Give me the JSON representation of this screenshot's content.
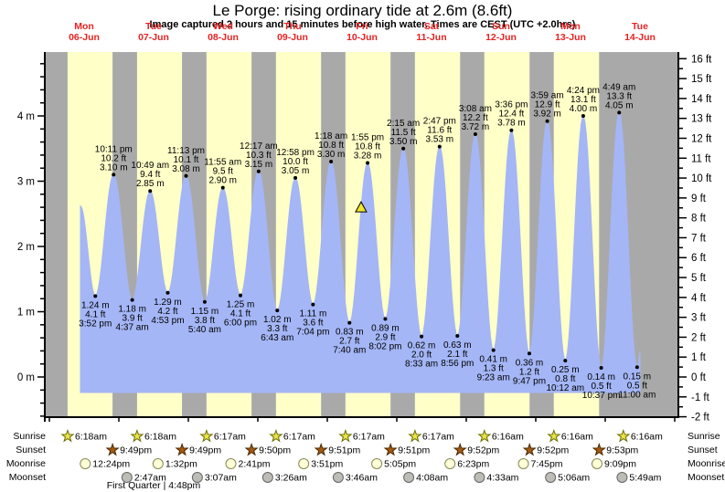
{
  "title": "Le Porge: rising  ordinary tide at 2.6m (8.6ft)",
  "subtitle": "Image captured 2 hours and 15 minutes before high water. Times are CEST (UTC +2.0hrs)",
  "row_labels": {
    "sunrise": "Sunrise",
    "sunset": "Sunset",
    "moonrise": "Moonrise",
    "moonset": "Moonset"
  },
  "moon_phase": {
    "label": "First Quarter | 4:48pm",
    "day_index": 1
  },
  "colors": {
    "night_band": "#a9a9a9",
    "day_band": "#ffffc8",
    "tide_fill": "#a4b6f6",
    "day_label_red": "#e82222",
    "axis_black": "#000000",
    "sunrise_star_fill": "#e8e44a",
    "sunrise_star_stroke": "#6b6b00",
    "sunset_star_fill": "#a55a11",
    "sunset_star_stroke": "#4a2800",
    "moonrise_fill": "#ffffd8",
    "moonrise_stroke": "#888855",
    "moonset_fill": "#bdbdb5",
    "moonset_stroke": "#666666",
    "marker_fill": "#f2e62e",
    "marker_stroke": "#000000"
  },
  "chart_data": {
    "type": "area",
    "y_axis_left": {
      "unit": "m",
      "tick_labels": [
        0,
        1,
        2,
        3,
        4
      ]
    },
    "y_axis_right": {
      "unit": "ft",
      "min": -2,
      "max": 16
    },
    "days": [
      {
        "name": "Mon",
        "date": "06-Jun"
      },
      {
        "name": "Tue",
        "date": "07-Jun"
      },
      {
        "name": "Wed",
        "date": "08-Jun"
      },
      {
        "name": "Thu",
        "date": "09-Jun"
      },
      {
        "name": "Fri",
        "date": "10-Jun"
      },
      {
        "name": "Sat",
        "date": "11-Jun"
      },
      {
        "name": "Sun",
        "date": "12-Jun"
      },
      {
        "name": "Mon",
        "date": "13-Jun"
      },
      {
        "name": "Tue",
        "date": "14-Jun"
      }
    ],
    "high_tides": [
      {
        "day": 0,
        "hour": 22.183,
        "time": "10:11 pm",
        "ft_label": "10.2 ft",
        "m": 3.1,
        "m_label": "3.10 m"
      },
      {
        "day": 1,
        "hour": 10.817,
        "time": "10:49 am",
        "ft_label": "9.4 ft",
        "m": 2.85,
        "m_label": "2.85 m"
      },
      {
        "day": 1,
        "hour": 23.217,
        "time": "11:13 pm",
        "ft_label": "10.1 ft",
        "m": 3.08,
        "m_label": "3.08 m"
      },
      {
        "day": 2,
        "hour": 11.917,
        "time": "11:55 am",
        "ft_label": "9.5 ft",
        "m": 2.9,
        "m_label": "2.90 m"
      },
      {
        "day": 3,
        "hour": 0.283,
        "time": "12:17 am",
        "ft_label": "10.3 ft",
        "m": 3.15,
        "m_label": "3.15 m"
      },
      {
        "day": 3,
        "hour": 12.967,
        "time": "12:58 pm",
        "ft_label": "10.0 ft",
        "m": 3.05,
        "m_label": "3.05 m"
      },
      {
        "day": 4,
        "hour": 1.3,
        "time": "1:18 am",
        "ft_label": "10.8 ft",
        "m": 3.3,
        "m_label": "3.30 m"
      },
      {
        "day": 4,
        "hour": 13.917,
        "time": "1:55 pm",
        "ft_label": "10.8 ft",
        "m": 3.28,
        "m_label": "3.28 m"
      },
      {
        "day": 5,
        "hour": 2.25,
        "time": "2:15 am",
        "ft_label": "11.5 ft",
        "m": 3.5,
        "m_label": "3.50 m"
      },
      {
        "day": 5,
        "hour": 14.783,
        "time": "2:47 pm",
        "ft_label": "11.6 ft",
        "m": 3.53,
        "m_label": "3.53 m"
      },
      {
        "day": 6,
        "hour": 3.133,
        "time": "3:08 am",
        "ft_label": "12.2 ft",
        "m": 3.72,
        "m_label": "3.72 m"
      },
      {
        "day": 6,
        "hour": 15.6,
        "time": "3:36 pm",
        "ft_label": "12.4 ft",
        "m": 3.78,
        "m_label": "3.78 m"
      },
      {
        "day": 7,
        "hour": 3.983,
        "time": "3:59 am",
        "ft_label": "12.9 ft",
        "m": 3.92,
        "m_label": "3.92 m"
      },
      {
        "day": 7,
        "hour": 16.4,
        "time": "4:24 pm",
        "ft_label": "13.1 ft",
        "m": 4.0,
        "m_label": "4.00 m"
      },
      {
        "day": 8,
        "hour": 4.817,
        "time": "4:49 am",
        "ft_label": "13.3 ft",
        "m": 4.05,
        "m_label": "4.05 m"
      }
    ],
    "low_tides": [
      {
        "day": 0,
        "hour": 15.867,
        "time": "3:52 pm",
        "ft_label": "4.1 ft",
        "m": 1.24,
        "m_label": "1.24 m"
      },
      {
        "day": 1,
        "hour": 4.617,
        "time": "4:37 am",
        "ft_label": "3.9 ft",
        "m": 1.18,
        "m_label": "1.18 m"
      },
      {
        "day": 1,
        "hour": 16.883,
        "time": "4:53 pm",
        "ft_label": "4.2 ft",
        "m": 1.29,
        "m_label": "1.29 m"
      },
      {
        "day": 2,
        "hour": 5.667,
        "time": "5:40 am",
        "ft_label": "3.8 ft",
        "m": 1.15,
        "m_label": "1.15 m"
      },
      {
        "day": 2,
        "hour": 18.0,
        "time": "6:00 pm",
        "ft_label": "4.1 ft",
        "m": 1.25,
        "m_label": "1.25 m"
      },
      {
        "day": 3,
        "hour": 6.717,
        "time": "6:43 am",
        "ft_label": "3.3 ft",
        "m": 1.02,
        "m_label": "1.02 m"
      },
      {
        "day": 3,
        "hour": 19.067,
        "time": "7:04 pm",
        "ft_label": "3.6 ft",
        "m": 1.11,
        "m_label": "1.11 m"
      },
      {
        "day": 4,
        "hour": 7.667,
        "time": "7:40 am",
        "ft_label": "2.7 ft",
        "m": 0.83,
        "m_label": "0.83 m"
      },
      {
        "day": 4,
        "hour": 20.033,
        "time": "8:02 pm",
        "ft_label": "2.9 ft",
        "m": 0.89,
        "m_label": "0.89 m"
      },
      {
        "day": 5,
        "hour": 8.55,
        "time": "8:33 am",
        "ft_label": "2.0 ft",
        "m": 0.62,
        "m_label": "0.62 m"
      },
      {
        "day": 5,
        "hour": 20.933,
        "time": "8:56 pm",
        "ft_label": "2.1 ft",
        "m": 0.63,
        "m_label": "0.63 m"
      },
      {
        "day": 6,
        "hour": 9.383,
        "time": "9:23 am",
        "ft_label": "1.3 ft",
        "m": 0.41,
        "m_label": "0.41 m"
      },
      {
        "day": 6,
        "hour": 21.783,
        "time": "9:47 pm",
        "ft_label": "1.2 ft",
        "m": 0.36,
        "m_label": "0.36 m"
      },
      {
        "day": 7,
        "hour": 10.2,
        "time": "10:12 am",
        "ft_label": "0.8 ft",
        "m": 0.25,
        "m_label": "0.25 m"
      },
      {
        "day": 7,
        "hour": 22.617,
        "time": "10:37 pm",
        "ft_label": "0.5 ft",
        "m": 0.14,
        "m_label": "0.14 m"
      },
      {
        "day": 8,
        "hour": 11.0,
        "time": "11:00 am",
        "ft_label": "0.5 ft",
        "m": 0.15,
        "m_label": "0.15 m"
      }
    ],
    "curve_start": {
      "day": 0,
      "hour": 10.75,
      "height_m": 2.62
    },
    "curve_end": {
      "day": 8,
      "hour": 17.3,
      "height_m": 4.1
    },
    "current_marker": {
      "day": 4,
      "hour": 11.667,
      "height_m": 2.6
    },
    "sunrise": [
      {
        "day": 0,
        "hour": 6.3,
        "time": "6:18am"
      },
      {
        "day": 1,
        "hour": 6.3,
        "time": "6:18am"
      },
      {
        "day": 2,
        "hour": 6.283,
        "time": "6:17am"
      },
      {
        "day": 3,
        "hour": 6.283,
        "time": "6:17am"
      },
      {
        "day": 4,
        "hour": 6.283,
        "time": "6:17am"
      },
      {
        "day": 5,
        "hour": 6.283,
        "time": "6:17am"
      },
      {
        "day": 6,
        "hour": 6.267,
        "time": "6:16am"
      },
      {
        "day": 7,
        "hour": 6.267,
        "time": "6:16am"
      },
      {
        "day": 8,
        "hour": 6.267,
        "time": "6:16am"
      }
    ],
    "sunset": [
      {
        "day": 0,
        "hour": 21.817,
        "time": "9:49pm"
      },
      {
        "day": 1,
        "hour": 21.817,
        "time": "9:49pm"
      },
      {
        "day": 2,
        "hour": 21.833,
        "time": "9:50pm"
      },
      {
        "day": 3,
        "hour": 21.85,
        "time": "9:51pm"
      },
      {
        "day": 4,
        "hour": 21.85,
        "time": "9:51pm"
      },
      {
        "day": 5,
        "hour": 21.867,
        "time": "9:52pm"
      },
      {
        "day": 6,
        "hour": 21.867,
        "time": "9:52pm"
      },
      {
        "day": 7,
        "hour": 21.883,
        "time": "9:53pm"
      }
    ],
    "moonrise": [
      {
        "day": 0,
        "hour": 12.4,
        "time": "12:24pm"
      },
      {
        "day": 1,
        "hour": 13.533,
        "time": "1:32pm"
      },
      {
        "day": 2,
        "hour": 14.683,
        "time": "2:41pm"
      },
      {
        "day": 3,
        "hour": 15.85,
        "time": "3:51pm"
      },
      {
        "day": 4,
        "hour": 17.083,
        "time": "5:05pm"
      },
      {
        "day": 5,
        "hour": 18.383,
        "time": "6:23pm"
      },
      {
        "day": 6,
        "hour": 19.75,
        "time": "7:45pm"
      },
      {
        "day": 7,
        "hour": 21.15,
        "time": "9:09pm"
      }
    ],
    "moonset": [
      {
        "day": 1,
        "hour": 2.783,
        "time": "2:47am"
      },
      {
        "day": 2,
        "hour": 3.117,
        "time": "3:07am"
      },
      {
        "day": 3,
        "hour": 3.433,
        "time": "3:26am"
      },
      {
        "day": 4,
        "hour": 3.767,
        "time": "3:46am"
      },
      {
        "day": 5,
        "hour": 4.133,
        "time": "4:08am"
      },
      {
        "day": 6,
        "hour": 4.55,
        "time": "4:33am"
      },
      {
        "day": 7,
        "hour": 5.1,
        "time": "5:06am"
      },
      {
        "day": 8,
        "hour": 5.817,
        "time": "5:49am"
      }
    ]
  }
}
